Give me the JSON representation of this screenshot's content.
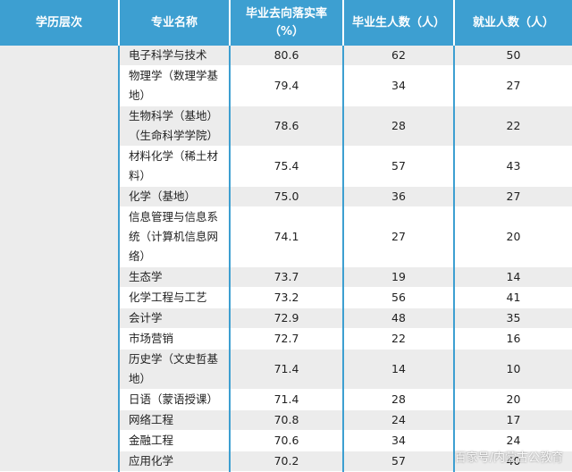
{
  "headers": {
    "level": "学历层次",
    "major": "专业名称",
    "rate": "毕业去向落实率（%）",
    "grads": "毕业生人数（人）",
    "employed": "就业人数（人）"
  },
  "level_value": "",
  "rows": [
    {
      "major": "电子科学与技术",
      "rate": "80.6",
      "grads": "62",
      "employed": "50"
    },
    {
      "major": "物理学（数理学基地）",
      "rate": "79.4",
      "grads": "34",
      "employed": "27"
    },
    {
      "major": "生物科学（基地）（生命科学学院）",
      "rate": "78.6",
      "grads": "28",
      "employed": "22"
    },
    {
      "major": "材料化学（稀土材料）",
      "rate": "75.4",
      "grads": "57",
      "employed": "43"
    },
    {
      "major": "化学（基地）",
      "rate": "75.0",
      "grads": "36",
      "employed": "27"
    },
    {
      "major": "信息管理与信息系统（计算机信息网络）",
      "rate": "74.1",
      "grads": "27",
      "employed": "20"
    },
    {
      "major": "生态学",
      "rate": "73.7",
      "grads": "19",
      "employed": "14"
    },
    {
      "major": "化学工程与工艺",
      "rate": "73.2",
      "grads": "56",
      "employed": "41"
    },
    {
      "major": "会计学",
      "rate": "72.9",
      "grads": "48",
      "employed": "35"
    },
    {
      "major": "市场营销",
      "rate": "72.7",
      "grads": "22",
      "employed": "16"
    },
    {
      "major": "历史学（文史哲基地）",
      "rate": "71.4",
      "grads": "14",
      "employed": "10"
    },
    {
      "major": "日语（蒙语授课）",
      "rate": "71.4",
      "grads": "28",
      "employed": "20"
    },
    {
      "major": "网络工程",
      "rate": "70.8",
      "grads": "24",
      "employed": "17"
    },
    {
      "major": "金融工程",
      "rate": "70.6",
      "grads": "34",
      "employed": "24"
    },
    {
      "major": "应用化学",
      "rate": "70.2",
      "grads": "57",
      "employed": "40"
    }
  ],
  "watermark": "百家号/内蒙古公教育"
}
